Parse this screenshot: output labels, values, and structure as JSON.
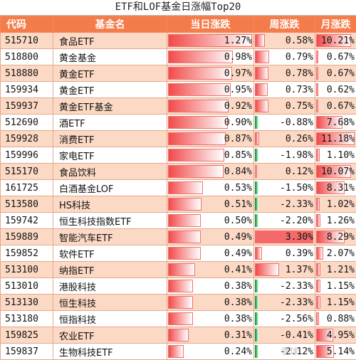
{
  "title": "ETF和LOF基金日涨幅Top20",
  "headers": [
    "代码",
    "基金名",
    "当日涨跌",
    "周涨跌",
    "月涨跌"
  ],
  "rows": [
    {
      "code": "515710",
      "name": "食品ETF",
      "day": "1.27%",
      "week": "0.58%",
      "month": "10.21%",
      "day_v": 1.27,
      "week_v": 0.58,
      "month_v": 10.21
    },
    {
      "code": "518800",
      "name": "黄金基金",
      "day": "0.98%",
      "week": "0.79%",
      "month": "0.67%",
      "day_v": 0.98,
      "week_v": 0.79,
      "month_v": 0.67
    },
    {
      "code": "518880",
      "name": "黄金ETF",
      "day": "0.97%",
      "week": "0.78%",
      "month": "0.67%",
      "day_v": 0.97,
      "week_v": 0.78,
      "month_v": 0.67
    },
    {
      "code": "159934",
      "name": "黄金ETF",
      "day": "0.95%",
      "week": "0.73%",
      "month": "0.62%",
      "day_v": 0.95,
      "week_v": 0.73,
      "month_v": 0.62
    },
    {
      "code": "159937",
      "name": "黄金ETF基金",
      "day": "0.92%",
      "week": "0.75%",
      "month": "0.67%",
      "day_v": 0.92,
      "week_v": 0.75,
      "month_v": 0.67
    },
    {
      "code": "512690",
      "name": "酒ETF",
      "day": "0.90%",
      "week": "-0.88%",
      "month": "7.68%",
      "day_v": 0.9,
      "week_v": -0.88,
      "month_v": 7.68
    },
    {
      "code": "159928",
      "name": "消费ETF",
      "day": "0.87%",
      "week": "0.26%",
      "month": "11.18%",
      "day_v": 0.87,
      "week_v": 0.26,
      "month_v": 11.18
    },
    {
      "code": "159996",
      "name": "家电ETF",
      "day": "0.85%",
      "week": "-1.98%",
      "month": "1.10%",
      "day_v": 0.85,
      "week_v": -1.98,
      "month_v": 1.1
    },
    {
      "code": "515170",
      "name": "食品饮料",
      "day": "0.84%",
      "week": "0.12%",
      "month": "10.07%",
      "day_v": 0.84,
      "week_v": 0.12,
      "month_v": 10.07
    },
    {
      "code": "161725",
      "name": "白酒基金LOF",
      "day": "0.53%",
      "week": "-1.50%",
      "month": "8.31%",
      "day_v": 0.53,
      "week_v": -1.5,
      "month_v": 8.31
    },
    {
      "code": "513580",
      "name": "HS科技",
      "day": "0.51%",
      "week": "-2.33%",
      "month": "1.02%",
      "day_v": 0.51,
      "week_v": -2.33,
      "month_v": 1.02
    },
    {
      "code": "159742",
      "name": "恒生科技指数ETF",
      "day": "0.50%",
      "week": "-2.20%",
      "month": "1.26%",
      "day_v": 0.5,
      "week_v": -2.2,
      "month_v": 1.26
    },
    {
      "code": "159889",
      "name": "智能汽车ETF",
      "day": "0.49%",
      "week": "3.30%",
      "month": "8.29%",
      "day_v": 0.49,
      "week_v": 3.3,
      "month_v": 8.29
    },
    {
      "code": "159852",
      "name": "软件ETF",
      "day": "0.49%",
      "week": "0.39%",
      "month": "2.07%",
      "day_v": 0.49,
      "week_v": 0.39,
      "month_v": 2.07
    },
    {
      "code": "513100",
      "name": "纳指ETF",
      "day": "0.41%",
      "week": "1.37%",
      "month": "1.21%",
      "day_v": 0.41,
      "week_v": 1.37,
      "month_v": 1.21
    },
    {
      "code": "513010",
      "name": "港股科技",
      "day": "0.38%",
      "week": "-2.33%",
      "month": "1.15%",
      "day_v": 0.38,
      "week_v": -2.33,
      "month_v": 1.15
    },
    {
      "code": "513130",
      "name": "恒生科技",
      "day": "0.38%",
      "week": "-2.33%",
      "month": "1.15%",
      "day_v": 0.38,
      "week_v": -2.33,
      "month_v": 1.15
    },
    {
      "code": "513180",
      "name": "恒指科技",
      "day": "0.38%",
      "week": "-2.56%",
      "month": "0.88%",
      "day_v": 0.38,
      "week_v": -2.56,
      "month_v": 0.88
    },
    {
      "code": "159825",
      "name": "农业ETF",
      "day": "0.31%",
      "week": "-0.41%",
      "month": "4.95%",
      "day_v": 0.31,
      "week_v": -0.41,
      "month_v": 4.95
    },
    {
      "code": "159837",
      "name": "生物科技ETF",
      "day": "0.24%",
      "week": "-2.12%",
      "month": "5.14%",
      "day_v": 0.24,
      "week_v": -2.12,
      "month_v": 5.14
    }
  ],
  "watermark": "雪球",
  "colors": {
    "header_bg": "#f47c4a",
    "stripe": "#fcd9c4",
    "positive": "#f24a4a",
    "negative": "#26c15a"
  }
}
